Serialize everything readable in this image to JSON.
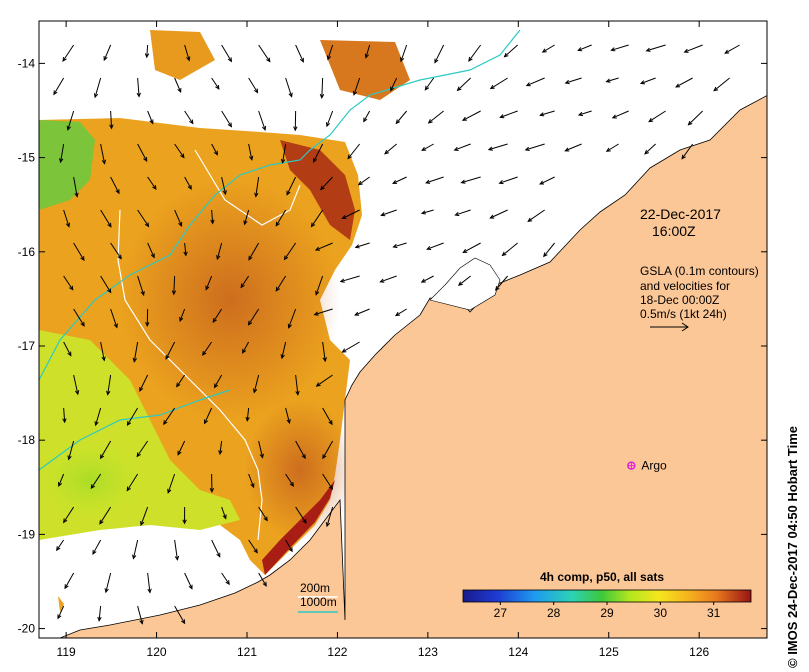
{
  "map": {
    "x_axis": {
      "min": 118.7,
      "max": 126.75,
      "ticks": [
        "119",
        "120",
        "121",
        "122",
        "123",
        "124",
        "125",
        "126"
      ],
      "values": [
        119,
        120,
        121,
        122,
        123,
        124,
        125,
        126
      ]
    },
    "y_axis": {
      "min": -20.1,
      "max": -13.55,
      "ticks": [
        "-14",
        "-15",
        "-16",
        "-17",
        "-18",
        "-19",
        "-20"
      ],
      "values": [
        -14,
        -15,
        -16,
        -17,
        -18,
        -19,
        -20
      ]
    }
  },
  "annotations": {
    "date": "22-Dec-2017",
    "time": "16:00Z",
    "gsla_line1": "GSLA (0.1m contours)",
    "gsla_line2": "and velocities for",
    "gsla_line3": "18-Dec 00:00Z",
    "gsla_line4": "0.5m/s (1kt 24h)",
    "argo_label": "Argo",
    "contour_200": "200m",
    "contour_1000": "1000m",
    "credit": "© IMOS 24-Dec-2017 04:50 Hobart Time"
  },
  "argo": {
    "lon": 125.25,
    "lat": -18.27
  },
  "colorbar": {
    "title": "4h comp, p50, all sats",
    "ticks": [
      "27",
      "28",
      "29",
      "30",
      "31"
    ],
    "tick_values": [
      27,
      28,
      29,
      30,
      31
    ],
    "min": 26.3,
    "max": 31.7
  },
  "colors": {
    "land": "#fcc797",
    "contour_200": "#ffffff",
    "contour_1000": "#2dc9c4",
    "argo": "#e024e0"
  }
}
